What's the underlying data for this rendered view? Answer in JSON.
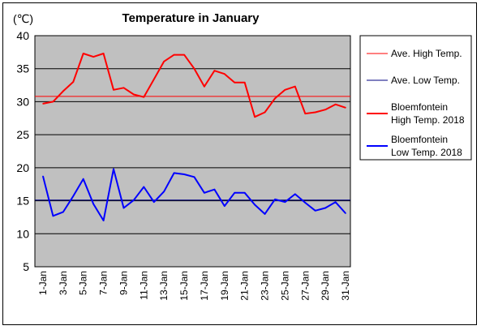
{
  "chart_data": {
    "type": "line",
    "title": "Temperature in January",
    "unit_label": "(℃)",
    "ylim": [
      5,
      40
    ],
    "y_ticks": [
      5,
      10,
      15,
      20,
      25,
      30,
      35,
      40
    ],
    "x": [
      "1-Jan",
      "2-Jan",
      "3-Jan",
      "4-Jan",
      "5-Jan",
      "6-Jan",
      "7-Jan",
      "8-Jan",
      "9-Jan",
      "10-Jan",
      "11-Jan",
      "12-Jan",
      "13-Jan",
      "14-Jan",
      "15-Jan",
      "16-Jan",
      "17-Jan",
      "18-Jan",
      "19-Jan",
      "20-Jan",
      "21-Jan",
      "22-Jan",
      "23-Jan",
      "24-Jan",
      "25-Jan",
      "26-Jan",
      "27-Jan",
      "28-Jan",
      "29-Jan",
      "30-Jan",
      "31-Jan"
    ],
    "x_tick_labels": [
      "1-Jan",
      "3-Jan",
      "5-Jan",
      "7-Jan",
      "9-Jan",
      "11-Jan",
      "13-Jan",
      "15-Jan",
      "17-Jan",
      "19-Jan",
      "21-Jan",
      "23-Jan",
      "25-Jan",
      "27-Jan",
      "29-Jan",
      "31-Jan"
    ],
    "grid": "horizontal",
    "legend_position": "right",
    "reference_lines": [
      {
        "name": "Ave. High Temp.",
        "value": 30.8,
        "color": "#ff0000"
      },
      {
        "name": "Ave. Low Temp.",
        "value": 15.1,
        "color": "#000080"
      }
    ],
    "series": [
      {
        "name": "Bloemfontein High Temp. 2018",
        "legend_lines": [
          "Bloemfontein",
          "High Temp. 2018"
        ],
        "color": "#ff0000",
        "values": [
          29.7,
          30.0,
          31.6,
          33.0,
          37.3,
          36.8,
          37.3,
          31.8,
          32.1,
          31.1,
          30.7,
          33.4,
          36.1,
          37.1,
          37.1,
          35.0,
          32.3,
          34.7,
          34.2,
          32.9,
          32.9,
          27.7,
          28.4,
          30.5,
          31.8,
          32.3,
          28.2,
          28.4,
          28.8,
          29.6,
          29.1
        ]
      },
      {
        "name": "Bloemfontein Low Temp. 2018",
        "legend_lines": [
          "Bloemfontein",
          "Low Temp. 2018"
        ],
        "color": "#0000ff",
        "values": [
          18.7,
          12.7,
          13.3,
          15.7,
          18.3,
          14.5,
          12.0,
          19.8,
          13.9,
          15.1,
          17.1,
          14.8,
          16.4,
          19.2,
          19.0,
          18.6,
          16.2,
          16.7,
          14.2,
          16.2,
          16.2,
          14.4,
          13.0,
          15.2,
          14.8,
          16.0,
          14.7,
          13.5,
          13.9,
          14.8,
          13.1
        ]
      }
    ],
    "colors": {
      "plot_background": "#c0c0c0",
      "grid": "#000000"
    }
  }
}
